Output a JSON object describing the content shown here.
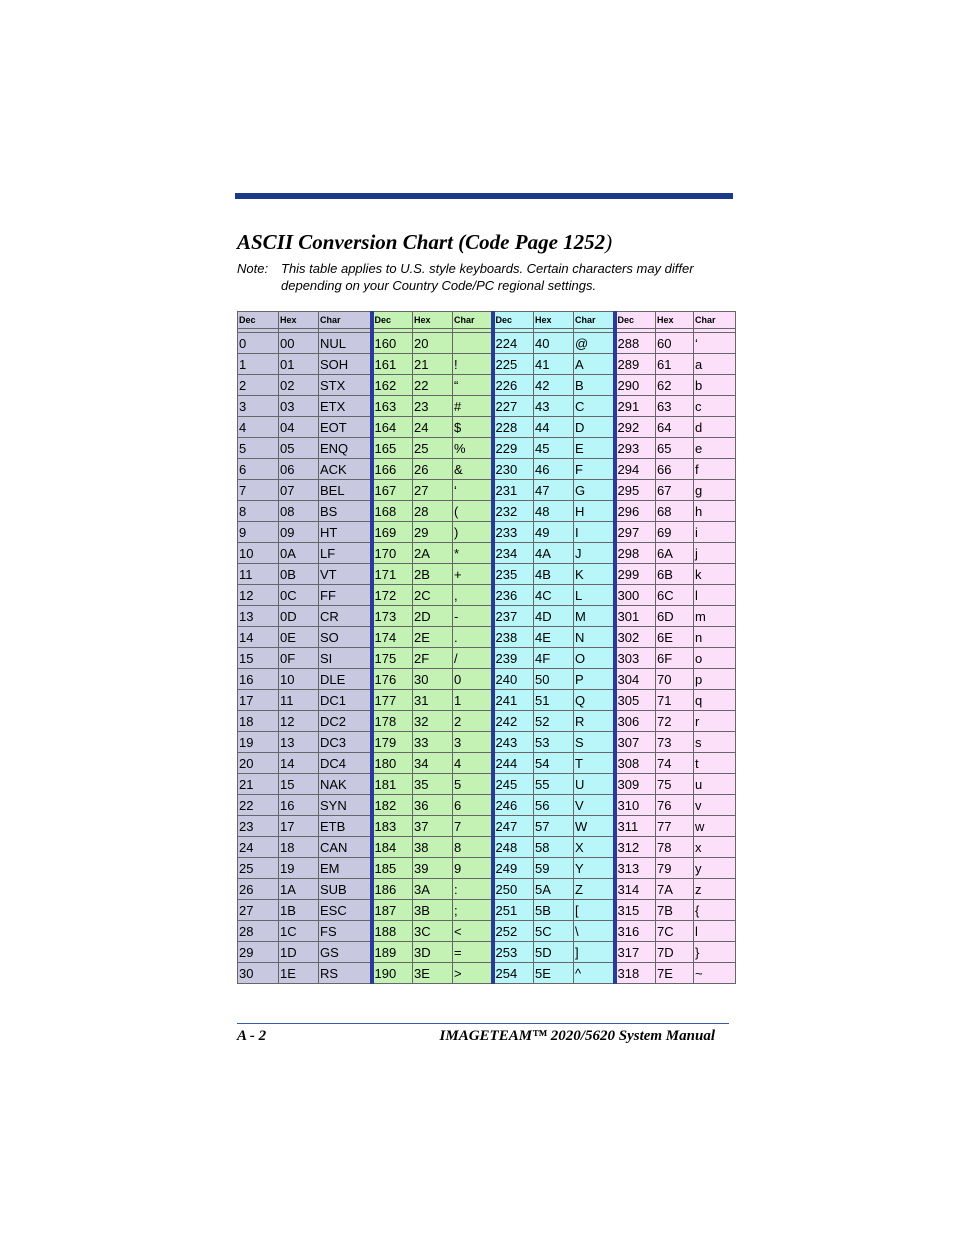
{
  "page": {
    "title_main": "ASCII Conversion Chart (Code Page 1252",
    "title_paren": ")",
    "note_label": "Note:",
    "note_text": "This table applies to U.S. style keyboards.  Certain characters may differ depending on your Country Code/PC regional settings.",
    "footer_left": "A - 2",
    "footer_right": "IMAGETEAM™ 2020/5620 System Manual"
  },
  "colors": {
    "bar": "#1c3a8c",
    "group1": "#c8c8e0",
    "group2": "#c4f2b4",
    "group3": "#b8f6fa",
    "group4": "#fce0fa"
  },
  "table": {
    "headers": [
      "Dec",
      "Hex",
      "Char",
      "Dec",
      "Hex",
      "Char",
      "Dec",
      "Hex",
      "Char",
      "Dec",
      "Hex",
      "Char"
    ],
    "rows": [
      [
        "0",
        "00",
        "NUL",
        "160",
        "20",
        "",
        "224",
        "40",
        "@",
        "288",
        "60",
        "‘"
      ],
      [
        "1",
        "01",
        "SOH",
        "161",
        "21",
        "!",
        "225",
        "41",
        "A",
        "289",
        "61",
        "a"
      ],
      [
        "2",
        "02",
        "STX",
        "162",
        "22",
        "“",
        "226",
        "42",
        "B",
        "290",
        "62",
        "b"
      ],
      [
        "3",
        "03",
        "ETX",
        "163",
        "23",
        "#",
        "227",
        "43",
        "C",
        "291",
        "63",
        "c"
      ],
      [
        "4",
        "04",
        "EOT",
        "164",
        "24",
        "$",
        "228",
        "44",
        "D",
        "292",
        "64",
        "d"
      ],
      [
        "5",
        "05",
        "ENQ",
        "165",
        "25",
        "%",
        "229",
        "45",
        "E",
        "293",
        "65",
        "e"
      ],
      [
        "6",
        "06",
        "ACK",
        "166",
        "26",
        "&",
        "230",
        "46",
        "F",
        "294",
        "66",
        "f"
      ],
      [
        "7",
        "07",
        "BEL",
        "167",
        "27",
        "‘",
        "231",
        "47",
        "G",
        "295",
        "67",
        "g"
      ],
      [
        "8",
        "08",
        "BS",
        "168",
        "28",
        "(",
        "232",
        "48",
        "H",
        "296",
        "68",
        "h"
      ],
      [
        "9",
        "09",
        "HT",
        "169",
        "29",
        ")",
        "233",
        "49",
        "I",
        "297",
        "69",
        "i"
      ],
      [
        "10",
        "0A",
        "LF",
        "170",
        "2A",
        "*",
        "234",
        "4A",
        "J",
        "298",
        "6A",
        "j"
      ],
      [
        "11",
        "0B",
        "VT",
        "171",
        "2B",
        "+",
        "235",
        "4B",
        "K",
        "299",
        "6B",
        "k"
      ],
      [
        "12",
        "0C",
        "FF",
        "172",
        "2C",
        ",",
        "236",
        "4C",
        "L",
        "300",
        "6C",
        "l"
      ],
      [
        "13",
        "0D",
        "CR",
        "173",
        "2D",
        "-",
        "237",
        "4D",
        "M",
        "301",
        "6D",
        "m"
      ],
      [
        "14",
        "0E",
        "SO",
        "174",
        "2E",
        ".",
        "238",
        "4E",
        "N",
        "302",
        "6E",
        "n"
      ],
      [
        "15",
        "0F",
        "SI",
        "175",
        "2F",
        "/",
        "239",
        "4F",
        "O",
        "303",
        "6F",
        "o"
      ],
      [
        "16",
        "10",
        "DLE",
        "176",
        "30",
        "0",
        "240",
        "50",
        "P",
        "304",
        "70",
        "p"
      ],
      [
        "17",
        "11",
        "DC1",
        "177",
        "31",
        "1",
        "241",
        "51",
        "Q",
        "305",
        "71",
        "q"
      ],
      [
        "18",
        "12",
        "DC2",
        "178",
        "32",
        "2",
        "242",
        "52",
        "R",
        "306",
        "72",
        "r"
      ],
      [
        "19",
        "13",
        "DC3",
        "179",
        "33",
        "3",
        "243",
        "53",
        "S",
        "307",
        "73",
        "s"
      ],
      [
        "20",
        "14",
        "DC4",
        "180",
        "34",
        "4",
        "244",
        "54",
        "T",
        "308",
        "74",
        "t"
      ],
      [
        "21",
        "15",
        "NAK",
        "181",
        "35",
        "5",
        "245",
        "55",
        "U",
        "309",
        "75",
        "u"
      ],
      [
        "22",
        "16",
        "SYN",
        "182",
        "36",
        "6",
        "246",
        "56",
        "V",
        "310",
        "76",
        "v"
      ],
      [
        "23",
        "17",
        "ETB",
        "183",
        "37",
        "7",
        "247",
        "57",
        "W",
        "311",
        "77",
        "w"
      ],
      [
        "24",
        "18",
        "CAN",
        "184",
        "38",
        "8",
        "248",
        "58",
        "X",
        "312",
        "78",
        "x"
      ],
      [
        "25",
        "19",
        "EM",
        "185",
        "39",
        "9",
        "249",
        "59",
        "Y",
        "313",
        "79",
        "y"
      ],
      [
        "26",
        "1A",
        "SUB",
        "186",
        "3A",
        ":",
        "250",
        "5A",
        "Z",
        "314",
        "7A",
        "z"
      ],
      [
        "27",
        "1B",
        "ESC",
        "187",
        "3B",
        ";",
        "251",
        "5B",
        "[",
        "315",
        "7B",
        "{"
      ],
      [
        "28",
        "1C",
        "FS",
        "188",
        "3C",
        "<",
        "252",
        "5C",
        "\\",
        "316",
        "7C",
        "l"
      ],
      [
        "29",
        "1D",
        "GS",
        "189",
        "3D",
        "=",
        "253",
        "5D",
        "]",
        "317",
        "7D",
        "}"
      ],
      [
        "30",
        "1E",
        "RS",
        "190",
        "3E",
        ">",
        "254",
        "5E",
        "^",
        "318",
        "7E",
        "~"
      ]
    ]
  }
}
